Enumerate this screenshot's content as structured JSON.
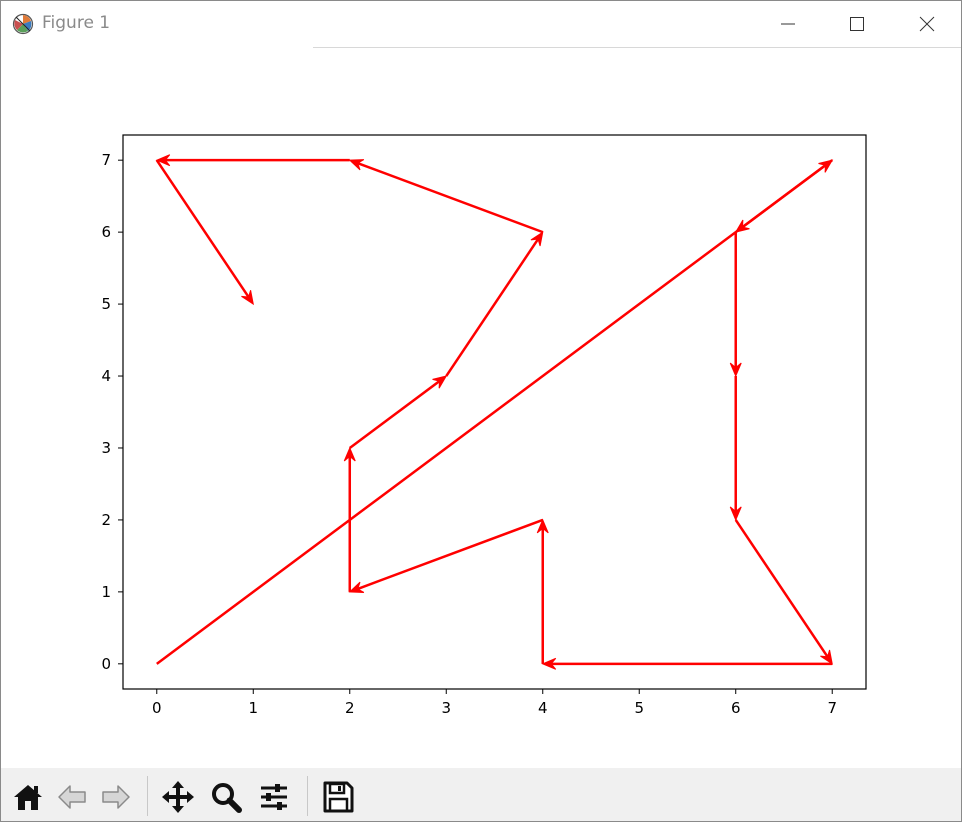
{
  "window": {
    "title": "Figure 1",
    "controls": {
      "minimize": "minimize-icon",
      "maximize": "maximize-icon",
      "close": "close-icon"
    }
  },
  "toolbar": {
    "buttons": [
      {
        "name": "home-button",
        "icon": "home-icon"
      },
      {
        "name": "back-button",
        "icon": "back-arrow-icon"
      },
      {
        "name": "forward-button",
        "icon": "forward-arrow-icon"
      },
      {
        "name": "pan-button",
        "icon": "move-icon"
      },
      {
        "name": "zoom-button",
        "icon": "zoom-icon"
      },
      {
        "name": "configure-subplots-button",
        "icon": "sliders-icon"
      },
      {
        "name": "save-button",
        "icon": "save-icon"
      }
    ]
  },
  "chart_data": {
    "type": "line",
    "title": "",
    "xlabel": "",
    "ylabel": "",
    "xlim": [
      -0.35,
      7.35
    ],
    "ylim": [
      -0.35,
      7.35
    ],
    "xticks": [
      "0",
      "1",
      "2",
      "3",
      "4",
      "5",
      "6",
      "7"
    ],
    "yticks": [
      "0",
      "1",
      "2",
      "3",
      "4",
      "5",
      "6",
      "7"
    ],
    "grid": false,
    "arrow_color": "#ff0000",
    "arrows": [
      {
        "from": [
          0,
          0
        ],
        "to": [
          7,
          7
        ]
      },
      {
        "from": [
          7,
          7
        ],
        "to": [
          6,
          6
        ]
      },
      {
        "from": [
          6,
          6
        ],
        "to": [
          6,
          4
        ]
      },
      {
        "from": [
          6,
          4
        ],
        "to": [
          6,
          2
        ]
      },
      {
        "from": [
          6,
          2
        ],
        "to": [
          7,
          0
        ]
      },
      {
        "from": [
          7,
          0
        ],
        "to": [
          4,
          0
        ]
      },
      {
        "from": [
          4,
          0
        ],
        "to": [
          4,
          2
        ]
      },
      {
        "from": [
          4,
          2
        ],
        "to": [
          2,
          1
        ]
      },
      {
        "from": [
          2,
          1
        ],
        "to": [
          2,
          3
        ]
      },
      {
        "from": [
          2,
          3
        ],
        "to": [
          3,
          4
        ]
      },
      {
        "from": [
          3,
          4
        ],
        "to": [
          4,
          6
        ]
      },
      {
        "from": [
          4,
          6
        ],
        "to": [
          2,
          7
        ]
      },
      {
        "from": [
          2,
          7
        ],
        "to": [
          0,
          7
        ]
      },
      {
        "from": [
          0,
          7
        ],
        "to": [
          1,
          5
        ]
      }
    ]
  }
}
